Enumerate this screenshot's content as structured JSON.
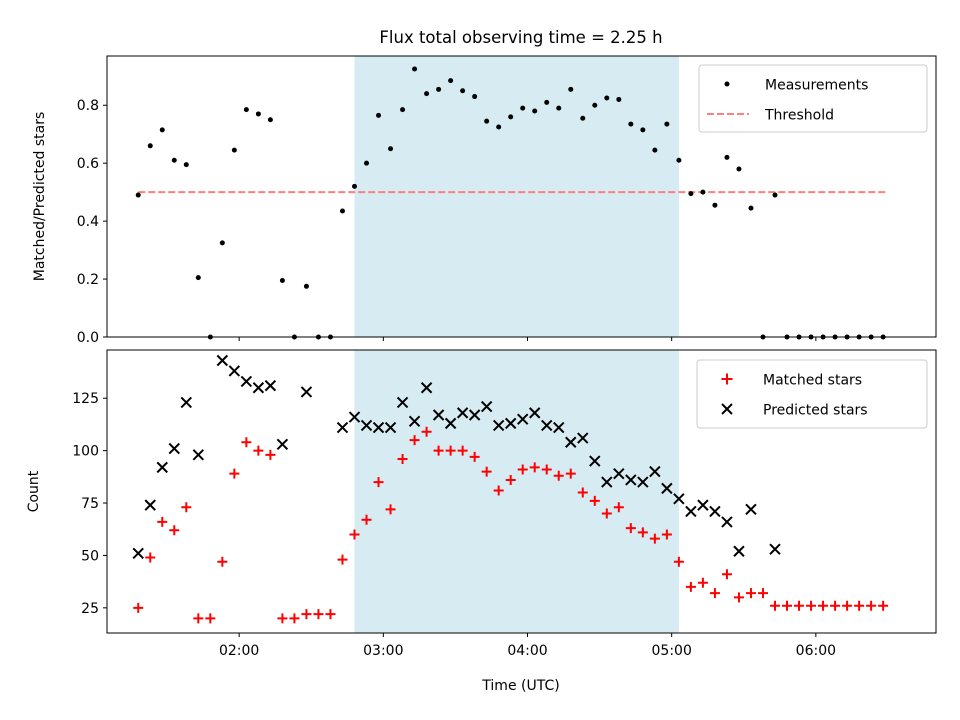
{
  "chart_data": [
    {
      "type": "scatter",
      "title": "Flux total observing time = 2.25 h",
      "xlabel": "",
      "ylabel": "Matched/Predicted stars",
      "xlim": [
        "01:05",
        "06:50"
      ],
      "ylim": [
        0,
        0.97
      ],
      "yticks": [
        0.0,
        0.2,
        0.4,
        0.6,
        0.8
      ],
      "ytick_labels": [
        "0.0",
        "0.2",
        "0.4",
        "0.6",
        "0.8"
      ],
      "shaded_span": {
        "x": [
          "02:48",
          "05:03"
        ],
        "color": "#add8e6"
      },
      "legend": {
        "placement": "top-right",
        "entries": [
          "Measurements",
          "Threshold"
        ]
      },
      "series": [
        {
          "name": "Measurements",
          "kind": "points",
          "color": "#000000",
          "points": [
            [
              "01:18",
              0.49
            ],
            [
              "01:23",
              0.66
            ],
            [
              "01:28",
              0.715
            ],
            [
              "01:33",
              0.61
            ],
            [
              "01:38",
              0.595
            ],
            [
              "01:43",
              0.205
            ],
            [
              "01:48",
              0.0
            ],
            [
              "01:53",
              0.325
            ],
            [
              "01:58",
              0.645
            ],
            [
              "02:03",
              0.785
            ],
            [
              "02:08",
              0.77
            ],
            [
              "02:13",
              0.75
            ],
            [
              "02:18",
              0.195
            ],
            [
              "02:23",
              0.0
            ],
            [
              "02:28",
              0.175
            ],
            [
              "02:33",
              0.0
            ],
            [
              "02:38",
              0.0
            ],
            [
              "02:43",
              0.435
            ],
            [
              "02:48",
              0.52
            ],
            [
              "02:53",
              0.6
            ],
            [
              "02:58",
              0.765
            ],
            [
              "03:03",
              0.65
            ],
            [
              "03:08",
              0.785
            ],
            [
              "03:13",
              0.925
            ],
            [
              "03:18",
              0.84
            ],
            [
              "03:23",
              0.855
            ],
            [
              "03:28",
              0.885
            ],
            [
              "03:33",
              0.85
            ],
            [
              "03:38",
              0.83
            ],
            [
              "03:43",
              0.745
            ],
            [
              "03:48",
              0.725
            ],
            [
              "03:53",
              0.76
            ],
            [
              "03:58",
              0.79
            ],
            [
              "04:03",
              0.78
            ],
            [
              "04:08",
              0.81
            ],
            [
              "04:13",
              0.79
            ],
            [
              "04:18",
              0.855
            ],
            [
              "04:23",
              0.755
            ],
            [
              "04:28",
              0.8
            ],
            [
              "04:33",
              0.825
            ],
            [
              "04:38",
              0.82
            ],
            [
              "04:43",
              0.735
            ],
            [
              "04:48",
              0.715
            ],
            [
              "04:53",
              0.645
            ],
            [
              "04:58",
              0.735
            ],
            [
              "05:03",
              0.61
            ],
            [
              "05:08",
              0.495
            ],
            [
              "05:13",
              0.5
            ],
            [
              "05:18",
              0.455
            ],
            [
              "05:23",
              0.62
            ],
            [
              "05:28",
              0.58
            ],
            [
              "05:33",
              0.445
            ],
            [
              "05:38",
              0.0
            ],
            [
              "05:43",
              0.49
            ],
            [
              "05:48",
              0.0
            ],
            [
              "05:53",
              0.0
            ],
            [
              "05:58",
              0.0
            ],
            [
              "06:03",
              0.0
            ],
            [
              "06:08",
              0.0
            ],
            [
              "06:13",
              0.0
            ],
            [
              "06:18",
              0.0
            ],
            [
              "06:23",
              0.0
            ],
            [
              "06:28",
              0.0
            ]
          ]
        },
        {
          "name": "Threshold",
          "kind": "dashed-line",
          "color": "#ff7f7f",
          "points": [
            [
              "01:18",
              0.5
            ],
            [
              "06:30",
              0.5
            ]
          ]
        }
      ]
    },
    {
      "type": "scatter",
      "title": "",
      "xlabel": "Time (UTC)",
      "ylabel": "Count",
      "xlim": [
        "01:05",
        "06:50"
      ],
      "ylim": [
        13,
        148
      ],
      "xticks": [
        "02:00",
        "03:00",
        "04:00",
        "05:00",
        "06:00"
      ],
      "yticks": [
        25,
        50,
        75,
        100,
        125
      ],
      "ytick_labels": [
        "25",
        "50",
        "75",
        "100",
        "125"
      ],
      "shaded_span": {
        "x": [
          "02:48",
          "05:03"
        ],
        "color": "#add8e6"
      },
      "legend": {
        "placement": "top-right",
        "entries": [
          "Matched stars",
          "Predicted stars"
        ]
      },
      "series": [
        {
          "name": "Matched stars",
          "marker": "plus",
          "color": "#ff0000",
          "points": [
            [
              "01:18",
              25
            ],
            [
              "01:23",
              49
            ],
            [
              "01:28",
              66
            ],
            [
              "01:33",
              62
            ],
            [
              "01:38",
              73
            ],
            [
              "01:43",
              20
            ],
            [
              "01:48",
              20
            ],
            [
              "01:53",
              47
            ],
            [
              "01:58",
              89
            ],
            [
              "02:03",
              104
            ],
            [
              "02:08",
              100
            ],
            [
              "02:13",
              98
            ],
            [
              "02:18",
              20
            ],
            [
              "02:23",
              20
            ],
            [
              "02:28",
              22
            ],
            [
              "02:33",
              22
            ],
            [
              "02:38",
              22
            ],
            [
              "02:43",
              48
            ],
            [
              "02:48",
              60
            ],
            [
              "02:53",
              67
            ],
            [
              "02:58",
              85
            ],
            [
              "03:03",
              72
            ],
            [
              "03:08",
              96
            ],
            [
              "03:13",
              105
            ],
            [
              "03:18",
              109
            ],
            [
              "03:23",
              100
            ],
            [
              "03:28",
              100
            ],
            [
              "03:33",
              100
            ],
            [
              "03:38",
              97
            ],
            [
              "03:43",
              90
            ],
            [
              "03:48",
              81
            ],
            [
              "03:53",
              86
            ],
            [
              "03:58",
              91
            ],
            [
              "04:03",
              92
            ],
            [
              "04:08",
              91
            ],
            [
              "04:13",
              88
            ],
            [
              "04:18",
              89
            ],
            [
              "04:23",
              80
            ],
            [
              "04:28",
              76
            ],
            [
              "04:33",
              70
            ],
            [
              "04:38",
              73
            ],
            [
              "04:43",
              63
            ],
            [
              "04:48",
              61
            ],
            [
              "04:53",
              58
            ],
            [
              "04:58",
              60
            ],
            [
              "05:03",
              47
            ],
            [
              "05:08",
              35
            ],
            [
              "05:13",
              37
            ],
            [
              "05:18",
              32
            ],
            [
              "05:23",
              41
            ],
            [
              "05:28",
              30
            ],
            [
              "05:33",
              32
            ],
            [
              "05:38",
              32
            ],
            [
              "05:43",
              26
            ],
            [
              "05:48",
              26
            ],
            [
              "05:53",
              26
            ],
            [
              "05:58",
              26
            ],
            [
              "06:03",
              26
            ],
            [
              "06:08",
              26
            ],
            [
              "06:13",
              26
            ],
            [
              "06:18",
              26
            ],
            [
              "06:23",
              26
            ],
            [
              "06:28",
              26
            ]
          ]
        },
        {
          "name": "Predicted stars",
          "marker": "x",
          "color": "#000000",
          "points": [
            [
              "01:18",
              51
            ],
            [
              "01:23",
              74
            ],
            [
              "01:28",
              92
            ],
            [
              "01:33",
              101
            ],
            [
              "01:38",
              123
            ],
            [
              "01:43",
              98
            ],
            [
              "01:53",
              143
            ],
            [
              "01:58",
              138
            ],
            [
              "02:03",
              133
            ],
            [
              "02:08",
              130
            ],
            [
              "02:13",
              131
            ],
            [
              "02:18",
              103
            ],
            [
              "02:28",
              128
            ],
            [
              "02:43",
              111
            ],
            [
              "02:48",
              116
            ],
            [
              "02:53",
              112
            ],
            [
              "02:58",
              111
            ],
            [
              "03:03",
              111
            ],
            [
              "03:08",
              123
            ],
            [
              "03:13",
              114
            ],
            [
              "03:18",
              130
            ],
            [
              "03:23",
              117
            ],
            [
              "03:28",
              113
            ],
            [
              "03:33",
              118
            ],
            [
              "03:38",
              117
            ],
            [
              "03:43",
              121
            ],
            [
              "03:48",
              112
            ],
            [
              "03:53",
              113
            ],
            [
              "03:58",
              115
            ],
            [
              "04:03",
              118
            ],
            [
              "04:08",
              112
            ],
            [
              "04:13",
              111
            ],
            [
              "04:18",
              104
            ],
            [
              "04:23",
              106
            ],
            [
              "04:28",
              95
            ],
            [
              "04:33",
              85
            ],
            [
              "04:38",
              89
            ],
            [
              "04:43",
              86
            ],
            [
              "04:48",
              85
            ],
            [
              "04:53",
              90
            ],
            [
              "04:58",
              82
            ],
            [
              "05:03",
              77
            ],
            [
              "05:08",
              71
            ],
            [
              "05:13",
              74
            ],
            [
              "05:18",
              71
            ],
            [
              "05:23",
              66
            ],
            [
              "05:28",
              52
            ],
            [
              "05:33",
              72
            ],
            [
              "05:43",
              53
            ]
          ]
        }
      ]
    }
  ]
}
